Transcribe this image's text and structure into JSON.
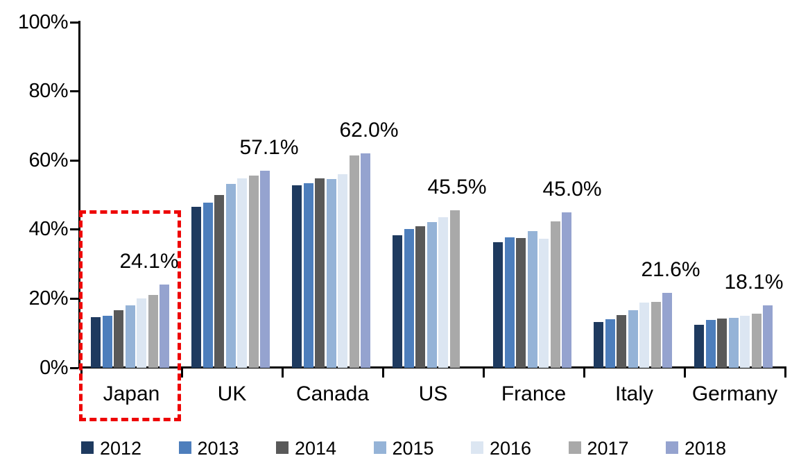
{
  "chart_data": {
    "type": "bar",
    "title": "",
    "xlabel": "",
    "ylabel": "",
    "ylim": [
      0,
      100
    ],
    "grid": false,
    "legend_position": "bottom",
    "y_ticks": [
      "0%",
      "20%",
      "40%",
      "60%",
      "80%",
      "100%"
    ],
    "y_tick_values": [
      0,
      20,
      40,
      60,
      80,
      100
    ],
    "categories": [
      "Japan",
      "UK",
      "Canada",
      "US",
      "France",
      "Italy",
      "Germany"
    ],
    "series": [
      {
        "name": "2012",
        "color": "#1e3a5f",
        "values": [
          14.7,
          46.5,
          52.9,
          38.3,
          36.4,
          13.2,
          12.4
        ]
      },
      {
        "name": "2013",
        "color": "#4d7ebc",
        "values": [
          15.1,
          47.8,
          53.5,
          40.1,
          37.8,
          14.0,
          13.9
        ]
      },
      {
        "name": "2014",
        "color": "#595959",
        "values": [
          16.7,
          50.0,
          54.9,
          41.0,
          37.6,
          15.3,
          14.2
        ]
      },
      {
        "name": "2015",
        "color": "#95b3d7",
        "values": [
          18.1,
          53.2,
          54.6,
          42.2,
          39.5,
          16.7,
          14.4
        ]
      },
      {
        "name": "2016",
        "color": "#dce6f2",
        "values": [
          20.1,
          54.8,
          56.1,
          43.5,
          37.3,
          18.9,
          15.1
        ]
      },
      {
        "name": "2017",
        "color": "#a9a9a9",
        "values": [
          21.1,
          55.7,
          61.5,
          45.5,
          42.4,
          19.1,
          15.7
        ]
      },
      {
        "name": "2018",
        "color": "#95a3cf",
        "values": [
          24.1,
          57.1,
          62.0,
          null,
          45.0,
          21.6,
          18.1
        ]
      }
    ],
    "data_labels": [
      "24.1%",
      "57.1%",
      "62.0%",
      "45.5%",
      "45.0%",
      "21.6%",
      "18.1%"
    ],
    "highlight": {
      "category": "Japan",
      "style": "red-dashed-box",
      "color": "#ee0505"
    },
    "legend_entries": [
      "2012",
      "2013",
      "2014",
      "2015",
      "2016",
      "2017",
      "2018"
    ]
  }
}
